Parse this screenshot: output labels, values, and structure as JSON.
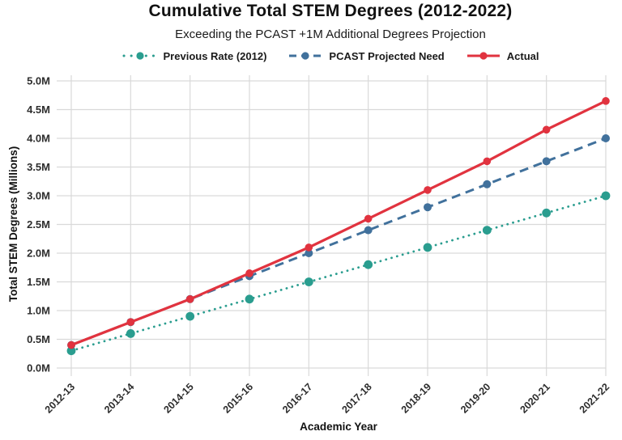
{
  "title": "Cumulative Total STEM Degrees (2012-2022)",
  "subtitle": "Exceeding the PCAST +1M Additional Degrees Projection",
  "chart_data": {
    "type": "line",
    "categories": [
      "2012-13",
      "2013-14",
      "2014-15",
      "2015-16",
      "2016-17",
      "2017-18",
      "2018-19",
      "2019-20",
      "2020-21",
      "2021-22"
    ],
    "series": [
      {
        "name": "Previous Rate (2012)",
        "values": [
          0.3,
          0.6,
          0.9,
          1.2,
          1.5,
          1.8,
          2.1,
          2.4,
          2.7,
          3.0
        ],
        "color": "#2a9d8f",
        "line_style": "dotted"
      },
      {
        "name": "PCAST Projected Need",
        "values": [
          0.4,
          0.8,
          1.2,
          1.6,
          2.0,
          2.4,
          2.8,
          3.2,
          3.6,
          4.0
        ],
        "color": "#41719c",
        "line_style": "dashed"
      },
      {
        "name": "Actual",
        "values": [
          0.4,
          0.8,
          1.2,
          1.65,
          2.1,
          2.6,
          3.1,
          3.6,
          4.15,
          4.65
        ],
        "color": "#e1333f",
        "line_style": "solid"
      }
    ],
    "xlabel": "Academic Year",
    "ylabel": "Total STEM Degrees (Millions)",
    "ylim": [
      0,
      5
    ],
    "ytick_step": 0.5,
    "ytick_suffix": "M",
    "grid": true,
    "legend_position": "top-center"
  },
  "colors": {
    "grid": "#d9d9d9",
    "title_text": "#111111",
    "tick_text": "#2d2d2d",
    "background": "#ffffff"
  }
}
